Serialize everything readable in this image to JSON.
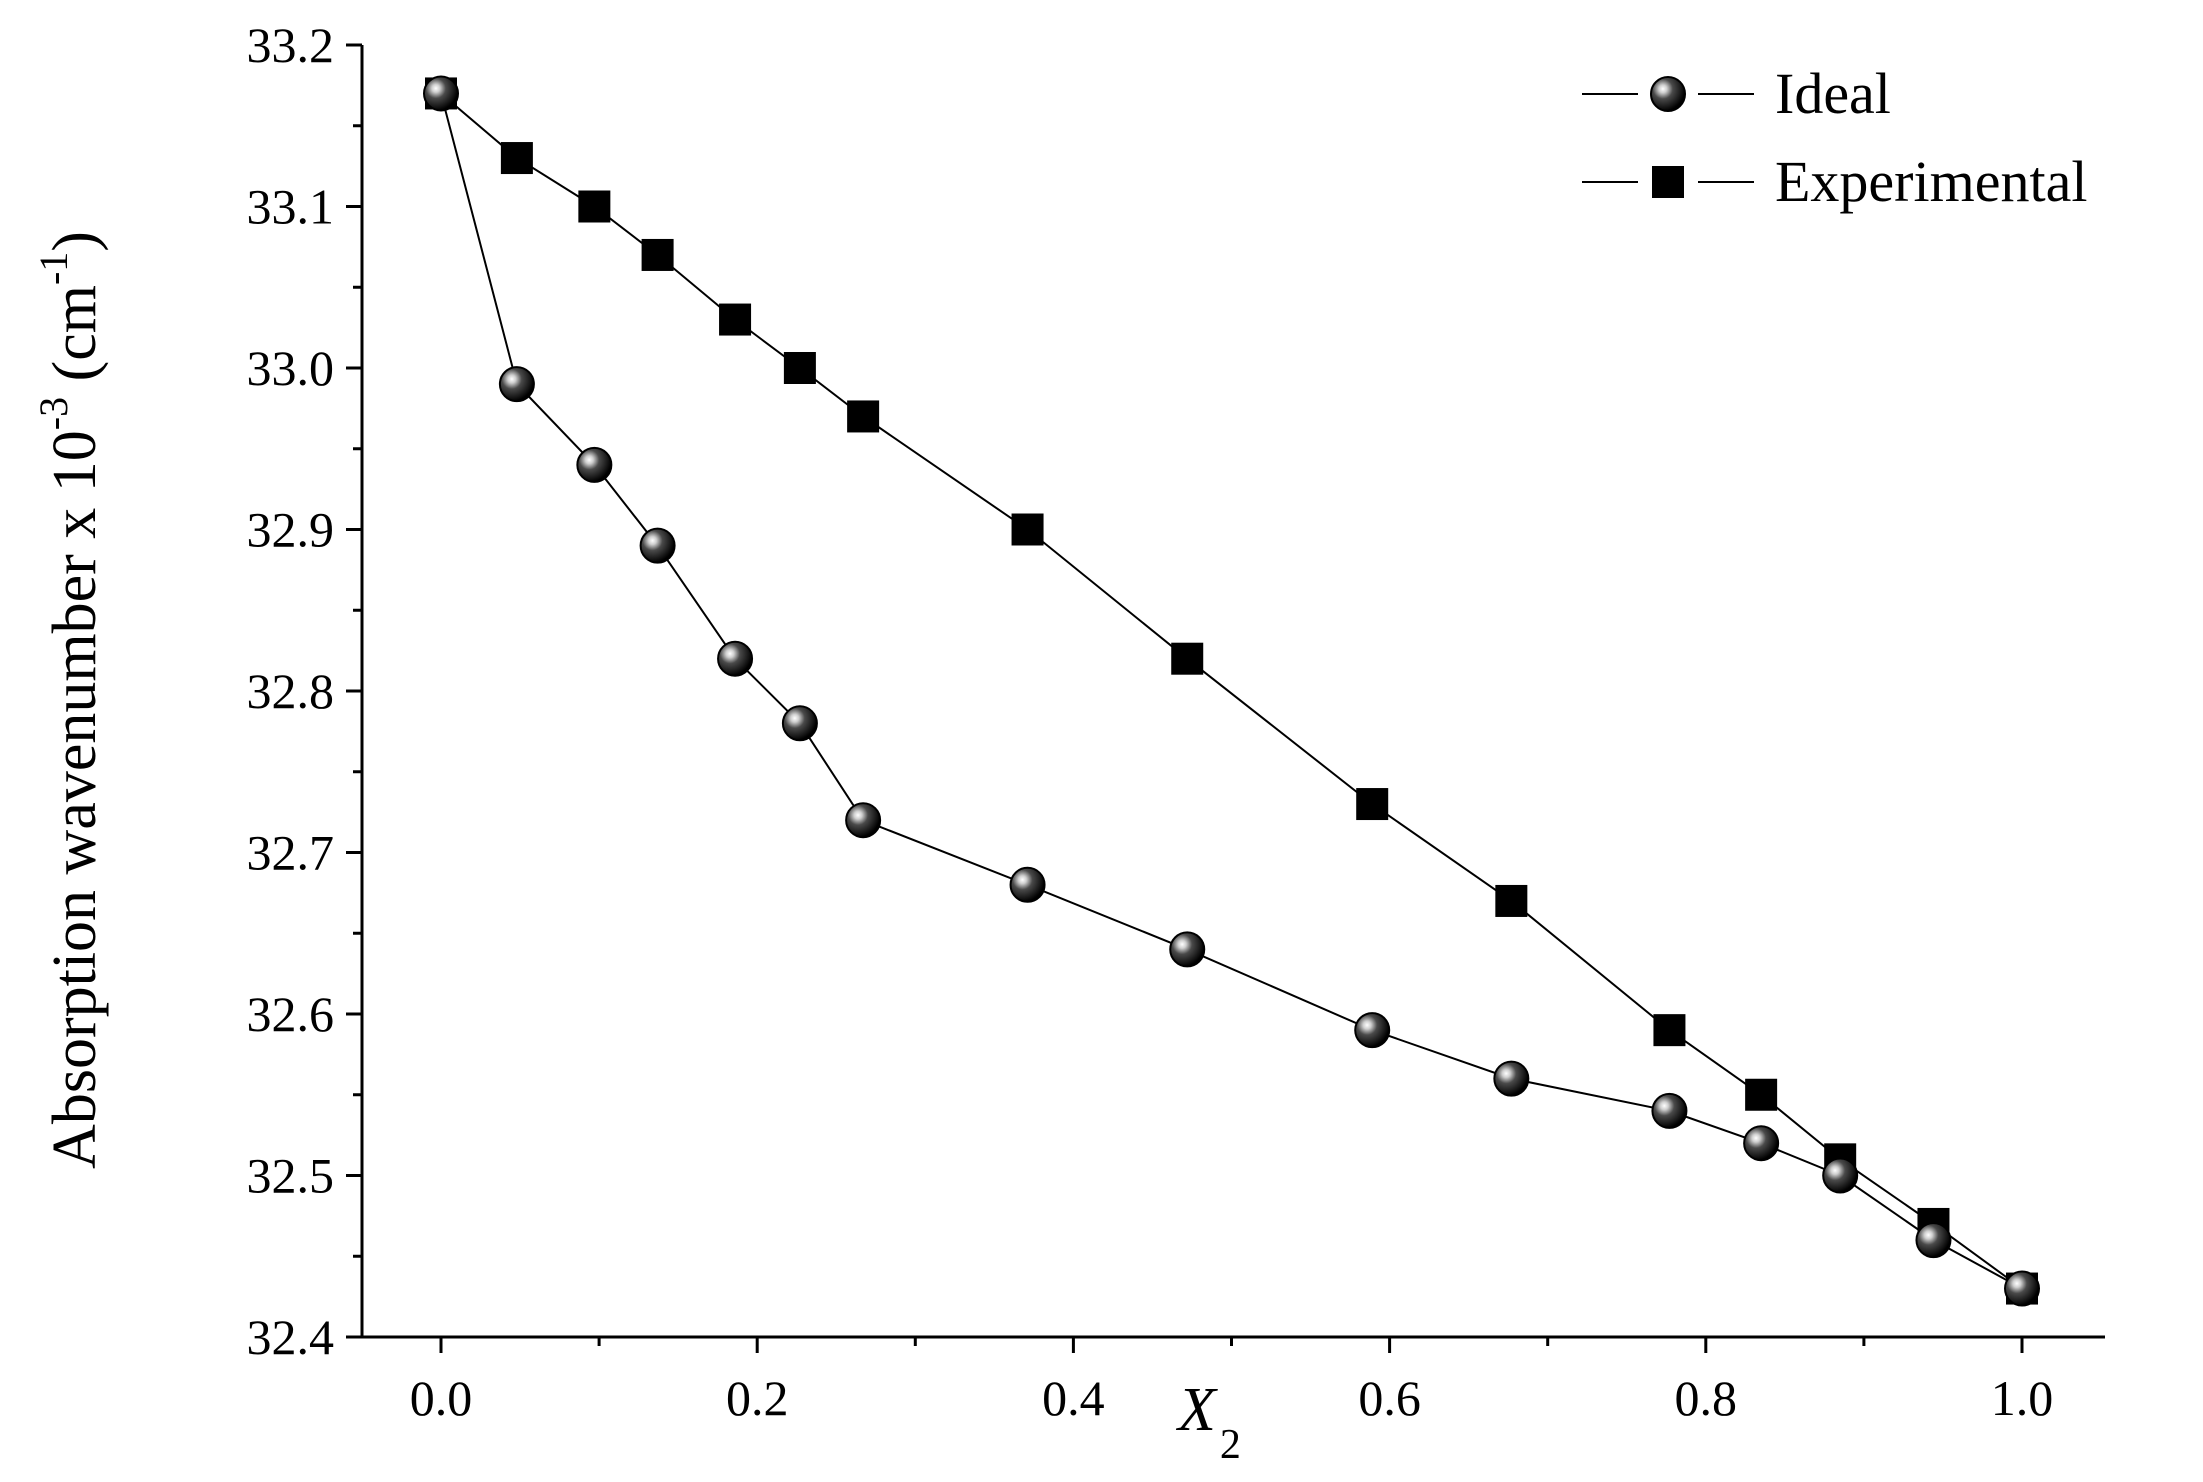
{
  "chart_data": {
    "type": "line",
    "title": "",
    "xlabel": "X",
    "xlabel_sub": "2",
    "ylabel": "Absorption wavenumber x 10",
    "ylabel_exp": "-3",
    "ylabel_unit_open": " (cm",
    "ylabel_unit_exp": "-1",
    "ylabel_unit_close": ")",
    "xlim": [
      -0.05,
      1.05
    ],
    "ylim": [
      32.4,
      33.2
    ],
    "xticks": [
      "0.0",
      "0.2",
      "0.4",
      "0.6",
      "0.8",
      "1.0"
    ],
    "yticks": [
      "32.4",
      "32.5",
      "32.6",
      "32.7",
      "32.8",
      "32.9",
      "33.0",
      "33.1",
      "33.2"
    ],
    "grid": false,
    "legend_position": "top-right",
    "series": [
      {
        "name": "Ideal",
        "marker": "sphere",
        "x": [
          0.0,
          0.048,
          0.097,
          0.137,
          0.186,
          0.227,
          0.267,
          0.371,
          0.472,
          0.589,
          0.677,
          0.777,
          0.835,
          0.885,
          0.944,
          1.0
        ],
        "y": [
          33.17,
          32.99,
          32.94,
          32.89,
          32.82,
          32.78,
          32.72,
          32.68,
          32.64,
          32.59,
          32.56,
          32.54,
          32.52,
          32.5,
          32.46,
          32.43
        ]
      },
      {
        "name": "Experimental",
        "marker": "square",
        "x": [
          0.0,
          0.048,
          0.097,
          0.137,
          0.186,
          0.227,
          0.267,
          0.371,
          0.472,
          0.589,
          0.677,
          0.777,
          0.835,
          0.885,
          0.944,
          1.0
        ],
        "y": [
          33.17,
          33.13,
          33.1,
          33.07,
          33.03,
          33.0,
          32.97,
          32.9,
          32.82,
          32.73,
          32.67,
          32.59,
          32.55,
          32.51,
          32.47,
          32.43
        ]
      }
    ]
  }
}
